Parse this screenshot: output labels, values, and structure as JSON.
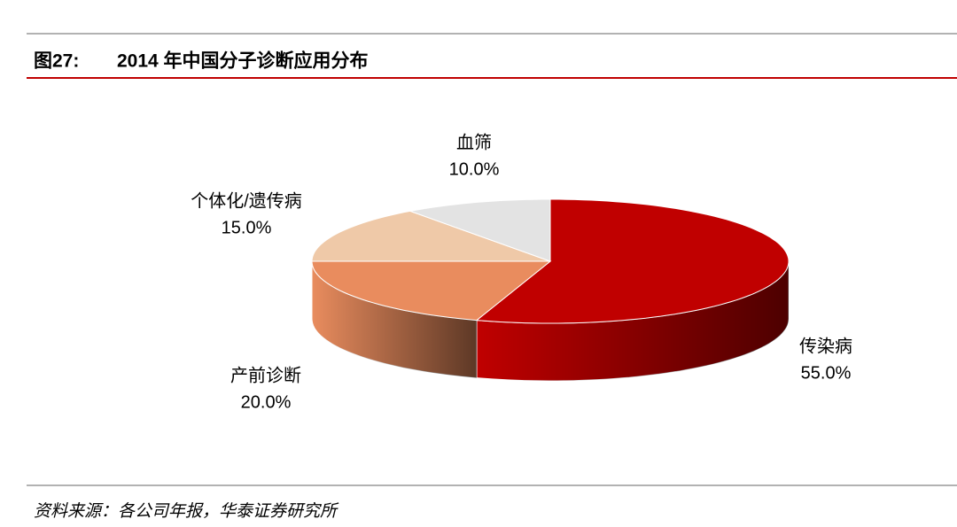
{
  "chart_data": {
    "type": "pie3d",
    "figure_label": "图27:",
    "title": "2014 年中国分子诊断应用分布",
    "source": "资料来源：各公司年报，华泰证券研究所",
    "categories": [
      "传染病",
      "产前诊断",
      "个体化/遗传病",
      "血筛"
    ],
    "values": [
      55.0,
      20.0,
      15.0,
      10.0
    ],
    "value_labels": [
      "55.0%",
      "20.0%",
      "15.0%",
      "10.0%"
    ],
    "colors": [
      "#c00000",
      "#e98c5e",
      "#efc9a8",
      "#e3e3e3"
    ]
  }
}
